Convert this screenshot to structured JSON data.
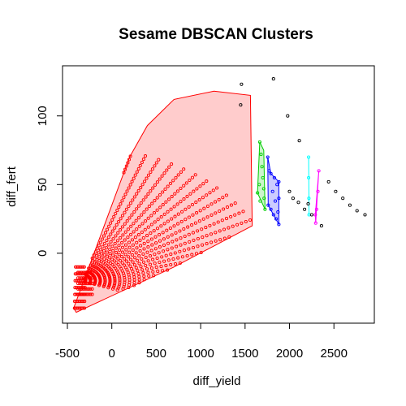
{
  "chart_data": {
    "type": "scatter",
    "title": "Sesame DBSCAN Clusters",
    "xlabel": "diff_yield",
    "ylabel": "diff_fert",
    "xlim": [
      -500,
      2900
    ],
    "ylim": [
      -45,
      130
    ],
    "x_ticks": [
      -500,
      0,
      500,
      1000,
      1500,
      2000,
      2500
    ],
    "y_ticks": [
      0,
      50,
      100
    ],
    "x_tick_labels": [
      "-500",
      "0",
      "500",
      "1000",
      "1500",
      "2000",
      "2500"
    ],
    "y_tick_labels": [
      "0",
      "50",
      "100"
    ],
    "grid": false,
    "legend": "none",
    "clusters": [
      {
        "color": "#FF0000",
        "fill": "#FF000033",
        "hull": [
          [
            -400,
            -43
          ],
          [
            -430,
            -40
          ],
          [
            -200,
            0
          ],
          [
            200,
            70
          ],
          [
            400,
            93
          ],
          [
            700,
            112
          ],
          [
            1150,
            118
          ],
          [
            1560,
            115
          ],
          [
            1580,
            20
          ],
          [
            700,
            -10
          ],
          [
            -400,
            -43
          ]
        ],
        "generator": "fan",
        "fan_origin": [
          -350,
          -20
        ]
      },
      {
        "color": "#00CD00",
        "fill": "#00CD0033",
        "hull": [
          [
            1665,
            81
          ],
          [
            1710,
            75
          ],
          [
            1725,
            32
          ],
          [
            1640,
            44
          ],
          [
            1665,
            81
          ]
        ],
        "points": [
          [
            1665,
            81
          ],
          [
            1680,
            72
          ],
          [
            1690,
            63
          ],
          [
            1700,
            55
          ],
          [
            1710,
            47
          ],
          [
            1715,
            40
          ],
          [
            1725,
            32
          ],
          [
            1640,
            44
          ],
          [
            1660,
            50
          ],
          [
            1670,
            38
          ]
        ]
      },
      {
        "color": "#0000FF",
        "fill": "#0000FF33",
        "hull": [
          [
            1755,
            70
          ],
          [
            1790,
            58
          ],
          [
            1880,
            52
          ],
          [
            1880,
            21
          ],
          [
            1760,
            35
          ],
          [
            1755,
            70
          ]
        ],
        "points": [
          [
            1755,
            70
          ],
          [
            1770,
            60
          ],
          [
            1790,
            58
          ],
          [
            1830,
            55
          ],
          [
            1860,
            50
          ],
          [
            1880,
            52
          ],
          [
            1880,
            40
          ],
          [
            1870,
            30
          ],
          [
            1880,
            21
          ],
          [
            1850,
            25
          ],
          [
            1820,
            28
          ],
          [
            1790,
            32
          ],
          [
            1760,
            35
          ],
          [
            1810,
            45
          ],
          [
            1840,
            38
          ]
        ]
      },
      {
        "color": "#00FFFF",
        "fill": "none",
        "hull": [
          [
            2215,
            70
          ],
          [
            2220,
            28
          ]
        ],
        "points": [
          [
            2215,
            70
          ],
          [
            2215,
            55
          ],
          [
            2218,
            40
          ],
          [
            2220,
            28
          ]
        ]
      },
      {
        "color": "#FF00FF",
        "fill": "none",
        "hull": [
          [
            2330,
            60
          ],
          [
            2295,
            22
          ],
          [
            2290,
            28
          ],
          [
            2330,
            60
          ]
        ],
        "points": [
          [
            2330,
            60
          ],
          [
            2320,
            45
          ],
          [
            2305,
            32
          ],
          [
            2295,
            22
          ],
          [
            2290,
            28
          ]
        ]
      }
    ],
    "noise": {
      "color": "#000000",
      "points": [
        [
          1460,
          123
        ],
        [
          1820,
          127
        ],
        [
          1450,
          108
        ],
        [
          1980,
          100
        ],
        [
          2110,
          82
        ],
        [
          2000,
          45
        ],
        [
          2040,
          40
        ],
        [
          2100,
          37
        ],
        [
          2170,
          32
        ],
        [
          2210,
          36
        ],
        [
          2250,
          28
        ],
        [
          2360,
          20
        ],
        [
          2440,
          52
        ],
        [
          2520,
          45
        ],
        [
          2600,
          40
        ],
        [
          2680,
          35
        ],
        [
          2760,
          31
        ],
        [
          2850,
          28
        ]
      ]
    }
  }
}
